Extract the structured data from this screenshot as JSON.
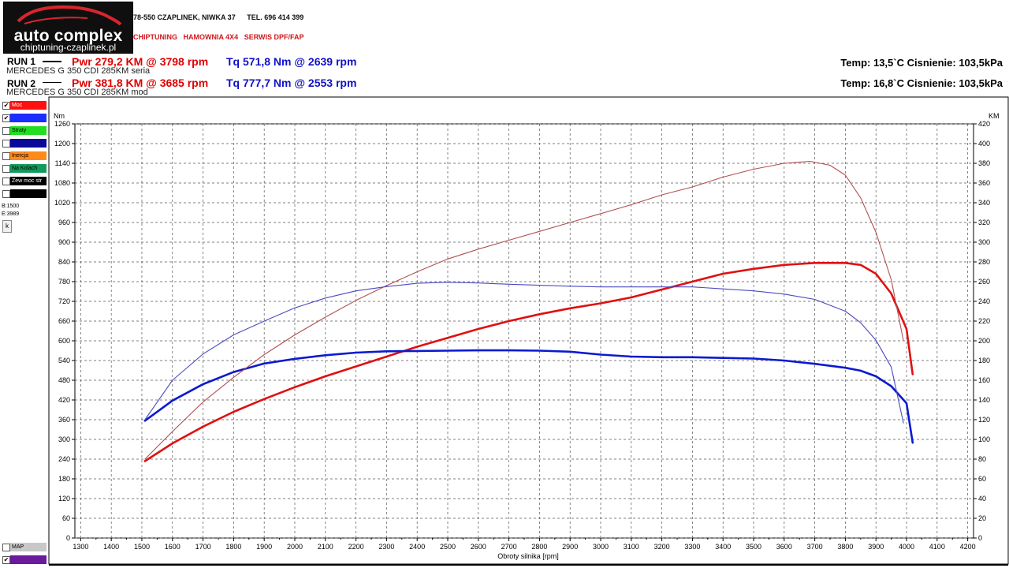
{
  "logo": {
    "brand": "auto complex",
    "site": "chiptuning-czaplinek.pl"
  },
  "header": {
    "address": "78-550 CZAPLINEK, NIWKA 37",
    "phone": "TEL. 696 414 399",
    "services": [
      "CHIPTUNING",
      "HAMOWNIA 4X4",
      "SERWIS DPF/FAP"
    ]
  },
  "runs": [
    {
      "label": "RUN 1",
      "pwr": "Pwr  279,2 KM @ 3798 rpm",
      "tq": "Tq 571,8 Nm @ 2639 rpm",
      "vehicle": "MERCEDES G 350 CDI 285KM seria",
      "temp": "Temp: 13,5`C   Cisnienie: 103,5kPa"
    },
    {
      "label": "RUN 2",
      "pwr": "Pwr  381,8 KM @ 3685 rpm",
      "tq": "Tq 777,7 Nm @ 2553 rpm",
      "vehicle": "MERCEDES G 350 CDI 285KM mod",
      "temp": "Temp: 16,8`C   Cisnienie: 103,5kPa"
    }
  ],
  "legend": [
    {
      "label": "Moc",
      "color": "#ff1010",
      "text_color": "#ffffff",
      "checked": true
    },
    {
      "label": "",
      "color": "#1a2eff",
      "text_color": "#ffffff",
      "checked": true
    },
    {
      "label": "Straty",
      "color": "#22dd22",
      "text_color": "#000000",
      "checked": false
    },
    {
      "label": "",
      "color": "#0a0a9a",
      "text_color": "#ffffff",
      "checked": false
    },
    {
      "label": "Inercja",
      "color": "#ff8a1a",
      "text_color": "#000000",
      "checked": false
    },
    {
      "label": "Na Kolach",
      "color": "#129a5a",
      "text_color": "#000000",
      "checked": false
    },
    {
      "label": "Zew moc str",
      "color": "#000000",
      "text_color": "#ffffff",
      "checked": false
    },
    {
      "label": "",
      "color": "#000000",
      "text_color": "#ffffff",
      "checked": false
    }
  ],
  "side": {
    "b": "B:1500",
    "e": "E:3989",
    "button": "k"
  },
  "bottom_legend": [
    {
      "label": "MAP",
      "color": "#c8c8c8",
      "text_color": "#000000",
      "checked": false
    },
    {
      "label": "",
      "color": "#6a1a9a",
      "text_color": "#ffffff",
      "checked": true
    }
  ],
  "chart_data": {
    "type": "line",
    "xlabel": "Obroty silnika [rpm]",
    "ylabel_left": "Nm",
    "ylabel_right": "KM",
    "xlim": [
      1300,
      4200
    ],
    "xticks": [
      1300,
      1400,
      1500,
      1600,
      1700,
      1800,
      1900,
      2000,
      2100,
      2200,
      2300,
      2400,
      2500,
      2600,
      2700,
      2800,
      2900,
      3000,
      3100,
      3200,
      3300,
      3400,
      3500,
      3600,
      3700,
      3800,
      3900,
      4000,
      4100,
      4200
    ],
    "ylim_left": [
      0,
      1260
    ],
    "yticks_left": [
      0,
      60,
      120,
      180,
      240,
      300,
      360,
      420,
      480,
      540,
      600,
      660,
      720,
      780,
      840,
      900,
      960,
      1020,
      1080,
      1140,
      1200,
      1260
    ],
    "ylim_right": [
      0,
      420
    ],
    "yticks_right": [
      0,
      20,
      40,
      60,
      80,
      100,
      120,
      140,
      160,
      180,
      200,
      220,
      240,
      260,
      280,
      300,
      320,
      340,
      360,
      380,
      400,
      420
    ],
    "grid": true,
    "series": [
      {
        "axis": "right",
        "color": "#e01010",
        "width": 2.6,
        "x": [
          1510,
          1600,
          1700,
          1800,
          1900,
          2000,
          2100,
          2200,
          2300,
          2400,
          2500,
          2600,
          2700,
          2800,
          2900,
          3000,
          3100,
          3200,
          3300,
          3400,
          3500,
          3600,
          3700,
          3800,
          3850,
          3900,
          3950,
          4000,
          4020
        ],
        "y": [
          78,
          96,
          113,
          128,
          141,
          153,
          164,
          174,
          184,
          194,
          203,
          212,
          220,
          227,
          233,
          238,
          244,
          252,
          260,
          268,
          273,
          277,
          279,
          279,
          277,
          268,
          248,
          212,
          166
        ]
      },
      {
        "axis": "left",
        "color": "#0a1ad0",
        "width": 2.6,
        "x": [
          1510,
          1600,
          1700,
          1800,
          1900,
          2000,
          2100,
          2200,
          2300,
          2400,
          2500,
          2600,
          2700,
          2800,
          2900,
          3000,
          3100,
          3200,
          3300,
          3400,
          3500,
          3600,
          3700,
          3800,
          3850,
          3900,
          3950,
          4000,
          4020
        ],
        "y": [
          357,
          418,
          468,
          505,
          531,
          545,
          556,
          564,
          568,
          569,
          570,
          571,
          571,
          570,
          567,
          558,
          552,
          550,
          550,
          548,
          546,
          540,
          530,
          518,
          509,
          492,
          462,
          410,
          290
        ]
      },
      {
        "axis": "right",
        "color": "#b05050",
        "width": 1.1,
        "x": [
          1510,
          1600,
          1700,
          1800,
          1900,
          2000,
          2100,
          2200,
          2300,
          2400,
          2500,
          2600,
          2700,
          2800,
          2900,
          3000,
          3100,
          3200,
          3300,
          3400,
          3500,
          3600,
          3685,
          3750,
          3800,
          3850,
          3900,
          3950,
          3990
        ],
        "y": [
          80,
          108,
          138,
          163,
          186,
          206,
          224,
          241,
          256,
          270,
          283,
          293,
          302,
          311,
          320,
          329,
          338,
          348,
          356,
          366,
          374,
          380,
          382,
          378,
          368,
          345,
          310,
          262,
          200
        ]
      },
      {
        "axis": "left",
        "color": "#4a4ac0",
        "width": 1.1,
        "x": [
          1510,
          1600,
          1700,
          1800,
          1900,
          2000,
          2100,
          2200,
          2300,
          2400,
          2500,
          2600,
          2700,
          2800,
          2900,
          3000,
          3100,
          3200,
          3300,
          3400,
          3500,
          3600,
          3700,
          3800,
          3850,
          3900,
          3950,
          3990
        ],
        "y": [
          360,
          480,
          560,
          618,
          660,
          700,
          730,
          752,
          765,
          775,
          778,
          776,
          772,
          769,
          766,
          764,
          764,
          764,
          764,
          758,
          752,
          742,
          726,
          690,
          655,
          602,
          520,
          350
        ]
      }
    ]
  }
}
